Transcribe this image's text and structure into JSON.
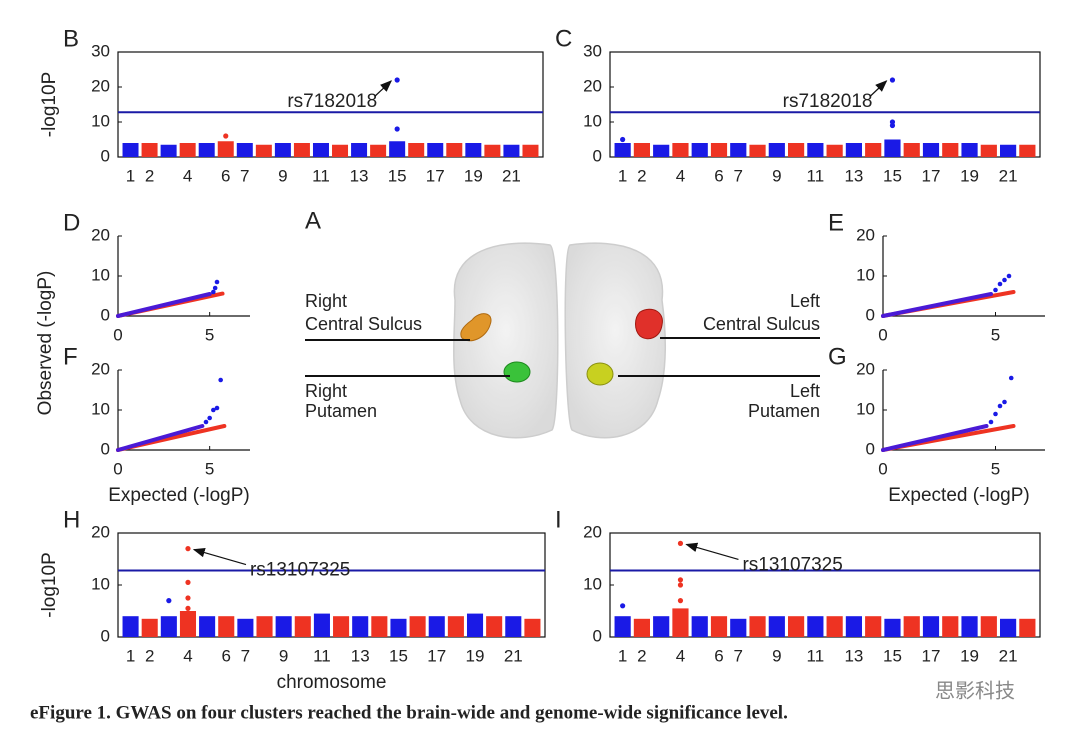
{
  "caption": "eFigure 1. GWAS on four clusters reached the brain-wide and genome-wide significance level.",
  "watermark": "思影科技",
  "brain": {
    "label": "A",
    "regions": [
      {
        "side": "Right",
        "name": "Central Sulcus"
      },
      {
        "side": "Right",
        "name": "Putamen"
      },
      {
        "side": "Left",
        "name": "Central Sulcus"
      },
      {
        "side": "Left",
        "name": "Putamen"
      }
    ]
  },
  "chart_data": [
    {
      "type": "manhattan",
      "panel": "B",
      "ylabel": "-log10P",
      "categories": [
        "1",
        "2",
        null,
        "4",
        null,
        "6",
        "7",
        null,
        "9",
        null,
        "11",
        null,
        "13",
        null,
        "15",
        null,
        "17",
        null,
        "19",
        null,
        "21",
        null
      ],
      "values": [
        4,
        4,
        3.5,
        4,
        4,
        4.5,
        4,
        3.5,
        4,
        4,
        4,
        3.5,
        4,
        3.5,
        4.5,
        4,
        4,
        4,
        4,
        3.5,
        3.5,
        3.5
      ],
      "hits": [
        {
          "chromosome": 6,
          "values": [
            6
          ]
        },
        {
          "chromosome": 15,
          "values": [
            22,
            8
          ]
        }
      ],
      "annotation": "rs7182018",
      "threshold": 12.8,
      "colors": [
        "#1a1ae6",
        "#ee3322"
      ],
      "threshold_color": "#1a1aa6",
      "ylim": [
        0,
        30
      ],
      "yticks": [
        0,
        10,
        20,
        30
      ]
    },
    {
      "type": "manhattan",
      "panel": "C",
      "categories": [
        "1",
        "2",
        null,
        "4",
        null,
        "6",
        "7",
        null,
        "9",
        null,
        "11",
        null,
        "13",
        null,
        "15",
        null,
        "17",
        null,
        "19",
        null,
        "21",
        null
      ],
      "values": [
        4,
        4,
        3.5,
        4,
        4,
        4,
        4,
        3.5,
        4,
        4,
        4,
        3.5,
        4,
        4,
        5,
        4,
        4,
        4,
        4,
        3.5,
        3.5,
        3.5
      ],
      "hits": [
        {
          "chromosome": 1,
          "values": [
            5
          ]
        },
        {
          "chromosome": 15,
          "values": [
            22,
            10,
            9
          ]
        }
      ],
      "annotation": "rs7182018",
      "threshold": 12.8,
      "colors": [
        "#1a1ae6",
        "#ee3322"
      ],
      "threshold_color": "#1a1aa6",
      "ylim": [
        0,
        30
      ],
      "yticks": [
        0,
        10,
        20,
        30
      ]
    },
    {
      "type": "qq",
      "panel": "D",
      "ylabel": "Observed (-logP)",
      "xlim": [
        0,
        7.2
      ],
      "xticks": [
        0,
        5
      ],
      "ylim": [
        0,
        20
      ],
      "yticks": [
        0,
        10,
        20
      ],
      "series": [
        {
          "color": "#ee3322",
          "mode": "line",
          "x": [
            0,
            5.7
          ],
          "values": [
            0,
            5.6
          ]
        },
        {
          "color": "#4a1ad6",
          "mode": "line",
          "x": [
            0,
            5.0
          ],
          "values": [
            0,
            5.5
          ]
        },
        {
          "color": "#1a1ae6",
          "mode": "points",
          "x": [
            5.2,
            5.3,
            5.4
          ],
          "values": [
            6,
            7,
            8.5
          ]
        }
      ]
    },
    {
      "type": "qq",
      "panel": "E",
      "xlim": [
        0,
        7.2
      ],
      "xticks": [
        0,
        5
      ],
      "ylim": [
        0,
        20
      ],
      "yticks": [
        0,
        10,
        20
      ],
      "series": [
        {
          "color": "#ee3322",
          "mode": "line",
          "x": [
            0,
            5.8
          ],
          "values": [
            0,
            6
          ]
        },
        {
          "color": "#4a1ad6",
          "mode": "line",
          "x": [
            0,
            4.8
          ],
          "values": [
            0,
            5.5
          ]
        },
        {
          "color": "#1a1ae6",
          "mode": "points",
          "x": [
            5.0,
            5.2,
            5.4,
            5.6
          ],
          "values": [
            6.5,
            8,
            9,
            10
          ]
        }
      ]
    },
    {
      "type": "qq",
      "panel": "F",
      "xlabel": "Expected (-logP)",
      "xlim": [
        0,
        7.2
      ],
      "xticks": [
        0,
        5
      ],
      "ylim": [
        0,
        20
      ],
      "yticks": [
        0,
        10,
        20
      ],
      "series": [
        {
          "color": "#ee3322",
          "mode": "line",
          "x": [
            0,
            5.8
          ],
          "values": [
            0,
            6
          ]
        },
        {
          "color": "#4a1ad6",
          "mode": "line",
          "x": [
            0,
            4.6
          ],
          "values": [
            0,
            6
          ]
        },
        {
          "color": "#1a1ae6",
          "mode": "points",
          "x": [
            4.8,
            5.0,
            5.2,
            5.4,
            5.6
          ],
          "values": [
            7,
            8,
            10,
            10.5,
            17.5
          ]
        }
      ]
    },
    {
      "type": "qq",
      "panel": "G",
      "xlabel": "Expected (-logP)",
      "xlim": [
        0,
        7.2
      ],
      "xticks": [
        0,
        5
      ],
      "ylim": [
        0,
        20
      ],
      "yticks": [
        0,
        10,
        20
      ],
      "series": [
        {
          "color": "#ee3322",
          "mode": "line",
          "x": [
            0,
            5.8
          ],
          "values": [
            0,
            6
          ]
        },
        {
          "color": "#4a1ad6",
          "mode": "line",
          "x": [
            0,
            4.6
          ],
          "values": [
            0,
            6
          ]
        },
        {
          "color": "#1a1ae6",
          "mode": "points",
          "x": [
            4.8,
            5.0,
            5.2,
            5.4,
            5.7
          ],
          "values": [
            7,
            9,
            11,
            12,
            18
          ]
        }
      ]
    },
    {
      "type": "manhattan",
      "panel": "H",
      "ylabel": "-log10P",
      "xlabel": "chromosome",
      "categories": [
        "1",
        "2",
        null,
        "4",
        null,
        "6",
        "7",
        null,
        "9",
        null,
        "11",
        null,
        "13",
        null,
        "15",
        null,
        "17",
        null,
        "19",
        null,
        "21",
        null
      ],
      "values": [
        4,
        3.5,
        4,
        5,
        4,
        4,
        3.5,
        4,
        4,
        4,
        4.5,
        4,
        4,
        4,
        3.5,
        4,
        4,
        4,
        4.5,
        4,
        4,
        3.5
      ],
      "hits": [
        {
          "chromosome": 4,
          "values": [
            17,
            10.5,
            7.5,
            5.5
          ]
        },
        {
          "chromosome": 3,
          "values": [
            7
          ]
        }
      ],
      "annotation": "rs13107325",
      "threshold": 12.8,
      "colors": [
        "#1a1ae6",
        "#ee3322"
      ],
      "threshold_color": "#1a1aa6",
      "ylim": [
        0,
        20
      ],
      "yticks": [
        0,
        10,
        20
      ]
    },
    {
      "type": "manhattan",
      "panel": "I",
      "categories": [
        "1",
        "2",
        null,
        "4",
        null,
        "6",
        "7",
        null,
        "9",
        null,
        "11",
        null,
        "13",
        null,
        "15",
        null,
        "17",
        null,
        "19",
        null,
        "21",
        null
      ],
      "values": [
        4,
        3.5,
        4,
        5.5,
        4,
        4,
        3.5,
        4,
        4,
        4,
        4,
        4,
        4,
        4,
        3.5,
        4,
        4,
        4,
        4,
        4,
        3.5,
        3.5
      ],
      "hits": [
        {
          "chromosome": 4,
          "values": [
            18,
            11,
            10,
            7
          ]
        },
        {
          "chromosome": 1,
          "values": [
            6
          ]
        }
      ],
      "annotation": "rs13107325",
      "threshold": 12.8,
      "colors": [
        "#1a1ae6",
        "#ee3322"
      ],
      "threshold_color": "#1a1aa6",
      "ylim": [
        0,
        20
      ],
      "yticks": [
        0,
        10,
        20
      ]
    }
  ]
}
